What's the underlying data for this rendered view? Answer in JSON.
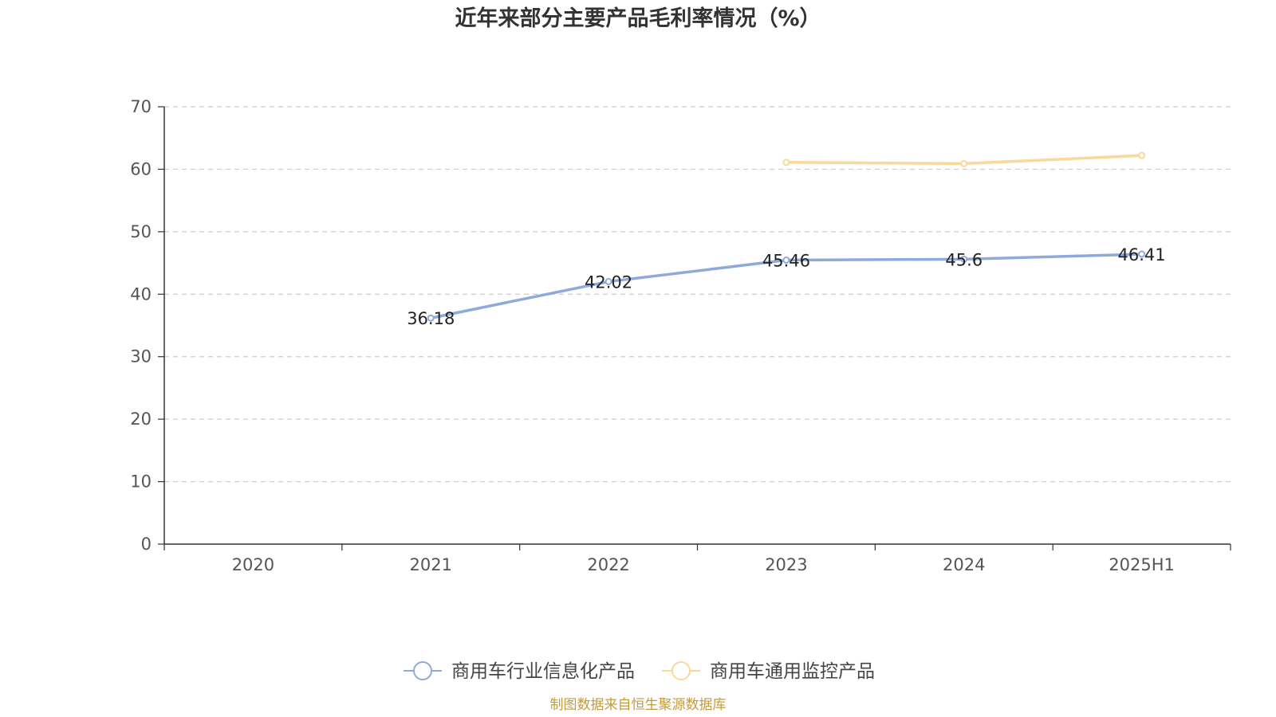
{
  "chart_data": {
    "type": "line",
    "title": "近年来部分主要产品毛利率情况（%）",
    "categories": [
      "2020",
      "2021",
      "2022",
      "2023",
      "2024",
      "2025H1"
    ],
    "ylim": [
      0,
      70
    ],
    "yticks": [
      0,
      10,
      20,
      30,
      40,
      50,
      60,
      70
    ],
    "grid": true,
    "legend_position": "bottom-center",
    "series": [
      {
        "name": "商用车行业信息化产品",
        "color": "#8eaadb",
        "values": [
          null,
          36.18,
          42.02,
          45.46,
          45.6,
          46.41
        ],
        "labels": [
          "",
          "36.18",
          "42.02",
          "45.46",
          "45.6",
          "46.41"
        ]
      },
      {
        "name": "商用车通用监控产品",
        "color": "#f9d99a",
        "values": [
          null,
          null,
          null,
          61.1,
          60.9,
          62.2
        ],
        "labels": [
          "",
          "",
          "",
          "",
          "",
          ""
        ]
      }
    ],
    "source": "制图数据来自恒生聚源数据库"
  }
}
